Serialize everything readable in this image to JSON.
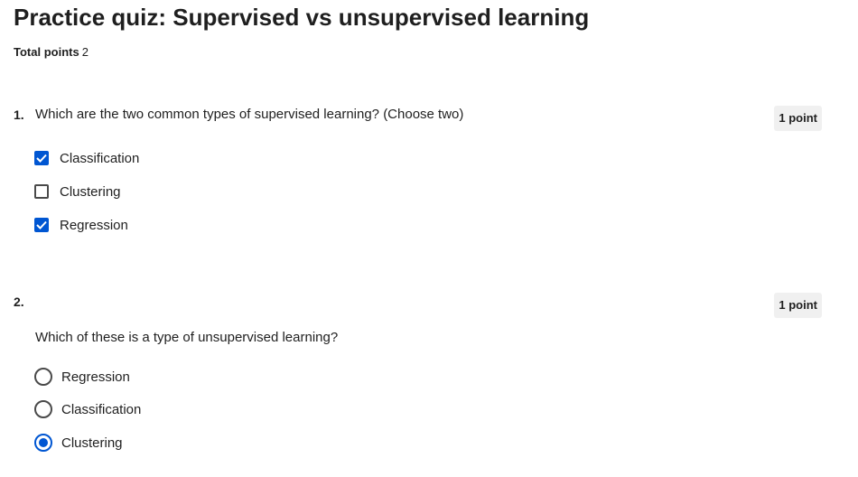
{
  "quiz": {
    "title": "Practice quiz: Supervised vs unsupervised learning",
    "total_points_label": "Total points",
    "total_points_value": "2"
  },
  "questions": [
    {
      "number": "1.",
      "text": "Which are the two common types of supervised learning? (Choose two)",
      "points": "1 point",
      "input_type": "checkbox",
      "options": [
        {
          "label": "Classification",
          "checked": true
        },
        {
          "label": "Clustering",
          "checked": false
        },
        {
          "label": "Regression",
          "checked": true
        }
      ]
    },
    {
      "number": "2.",
      "text": "Which of these is a type of unsupervised learning?",
      "points": "1 point",
      "input_type": "radio",
      "options": [
        {
          "label": "Regression",
          "checked": false
        },
        {
          "label": "Classification",
          "checked": false
        },
        {
          "label": "Clustering",
          "checked": true
        }
      ]
    }
  ],
  "colors": {
    "accent": "#0056d2",
    "badge_bg": "#f0f0f0",
    "text": "#1f1f1f"
  },
  "icons": {
    "checked_box": "checkmark-icon",
    "selected_radio": "radio-dot-icon"
  }
}
